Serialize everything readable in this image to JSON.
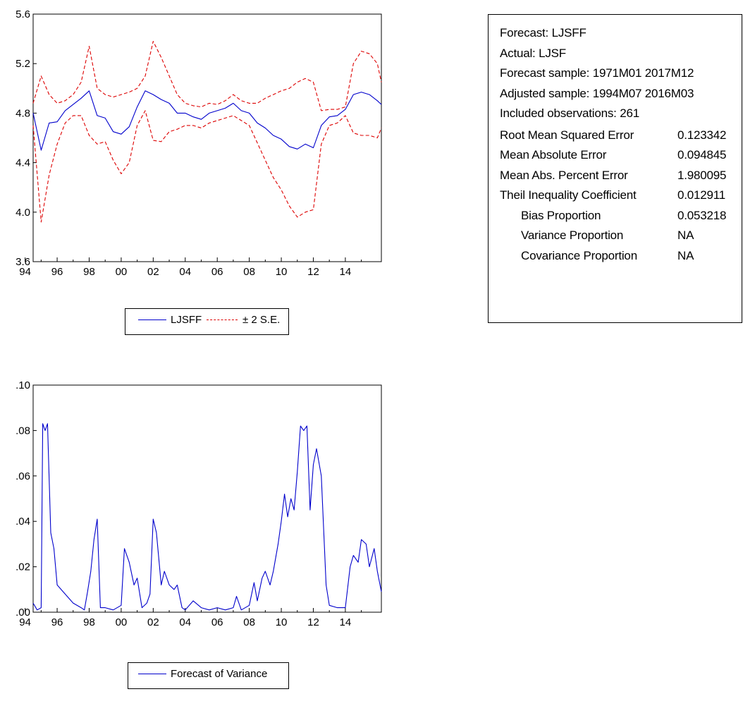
{
  "chart_data": [
    {
      "type": "line",
      "title": "",
      "xlabel": "",
      "ylabel": "",
      "x_ticks": [
        "94",
        "96",
        "98",
        "00",
        "02",
        "04",
        "06",
        "08",
        "10",
        "12",
        "14"
      ],
      "y_ticks": [
        "3.6",
        "4.0",
        "4.4",
        "4.8",
        "5.2",
        "5.6"
      ],
      "ylim": [
        3.6,
        5.6
      ],
      "xlim": [
        1994.5,
        2016.25
      ],
      "legend": [
        "LJSFF",
        "± 2 S.E."
      ],
      "legend_placement": "bottom-center",
      "colors": {
        "forecast": "#0000cc",
        "bands": "#dd0000"
      },
      "x": [
        1994.5,
        1995.0,
        1995.5,
        1996.0,
        1996.5,
        1997.0,
        1997.5,
        1998.0,
        1998.5,
        1999.0,
        1999.5,
        2000.0,
        2000.5,
        2001.0,
        2001.5,
        2002.0,
        2002.5,
        2003.0,
        2003.5,
        2004.0,
        2004.5,
        2005.0,
        2005.5,
        2006.0,
        2006.5,
        2007.0,
        2007.5,
        2008.0,
        2008.5,
        2009.0,
        2009.5,
        2010.0,
        2010.5,
        2011.0,
        2011.5,
        2012.0,
        2012.5,
        2013.0,
        2013.5,
        2014.0,
        2014.5,
        2015.0,
        2015.5,
        2016.0,
        2016.25
      ],
      "series": [
        {
          "name": "LJSFF",
          "style": "solid",
          "values": [
            4.8,
            4.5,
            4.72,
            4.73,
            4.82,
            4.87,
            4.92,
            4.98,
            4.78,
            4.76,
            4.65,
            4.63,
            4.69,
            4.85,
            4.98,
            4.95,
            4.91,
            4.88,
            4.8,
            4.8,
            4.77,
            4.75,
            4.8,
            4.82,
            4.84,
            4.88,
            4.82,
            4.8,
            4.72,
            4.68,
            4.62,
            4.59,
            4.53,
            4.51,
            4.55,
            4.52,
            4.7,
            4.77,
            4.78,
            4.83,
            4.95,
            4.97,
            4.95,
            4.9,
            4.87
          ]
        },
        {
          "name": "± 2 S.E.",
          "style": "dashed",
          "band": "upper",
          "values": [
            4.88,
            5.1,
            4.95,
            4.88,
            4.9,
            4.95,
            5.05,
            5.34,
            5.0,
            4.95,
            4.93,
            4.95,
            4.97,
            5.0,
            5.1,
            5.38,
            5.25,
            5.1,
            4.95,
            4.88,
            4.86,
            4.85,
            4.88,
            4.87,
            4.9,
            4.95,
            4.9,
            4.88,
            4.88,
            4.92,
            4.95,
            4.98,
            5.0,
            5.05,
            5.08,
            5.05,
            4.82,
            4.83,
            4.83,
            4.85,
            5.2,
            5.3,
            5.28,
            5.2,
            5.05
          ]
        },
        {
          "name": "± 2 S.E.",
          "style": "dashed",
          "band": "lower",
          "values": [
            4.7,
            3.92,
            4.3,
            4.55,
            4.72,
            4.78,
            4.78,
            4.62,
            4.55,
            4.57,
            4.42,
            4.31,
            4.4,
            4.7,
            4.82,
            4.58,
            4.57,
            4.65,
            4.67,
            4.7,
            4.7,
            4.68,
            4.72,
            4.74,
            4.76,
            4.78,
            4.74,
            4.7,
            4.56,
            4.42,
            4.28,
            4.18,
            4.05,
            3.96,
            4.0,
            4.02,
            4.55,
            4.7,
            4.72,
            4.78,
            4.64,
            4.62,
            4.62,
            4.6,
            4.68
          ]
        }
      ]
    },
    {
      "type": "line",
      "title": "",
      "xlabel": "",
      "ylabel": "",
      "x_ticks": [
        "94",
        "96",
        "98",
        "00",
        "02",
        "04",
        "06",
        "08",
        "10",
        "12",
        "14"
      ],
      "y_ticks": [
        ".00",
        ".02",
        ".04",
        ".06",
        ".08",
        ".10"
      ],
      "ylim": [
        0.0,
        0.1
      ],
      "xlim": [
        1994.5,
        2016.25
      ],
      "legend": [
        "Forecast of Variance"
      ],
      "legend_placement": "bottom-center",
      "colors": {
        "variance": "#0000cc"
      },
      "x": [
        1994.5,
        1994.75,
        1995.0,
        1995.1,
        1995.25,
        1995.4,
        1995.6,
        1995.8,
        1996.0,
        1996.5,
        1997.0,
        1997.5,
        1997.7,
        1997.9,
        1998.1,
        1998.3,
        1998.5,
        1998.7,
        1999.0,
        1999.5,
        2000.0,
        2000.2,
        2000.5,
        2000.8,
        2001.0,
        2001.3,
        2001.6,
        2001.8,
        2002.0,
        2002.2,
        2002.5,
        2002.7,
        2003.0,
        2003.3,
        2003.5,
        2003.8,
        2004.0,
        2004.5,
        2005.0,
        2005.5,
        2006.0,
        2006.5,
        2007.0,
        2007.2,
        2007.5,
        2008.0,
        2008.3,
        2008.5,
        2008.8,
        2009.0,
        2009.3,
        2009.5,
        2009.8,
        2010.0,
        2010.2,
        2010.4,
        2010.6,
        2010.8,
        2011.0,
        2011.2,
        2011.4,
        2011.6,
        2011.8,
        2012.0,
        2012.2,
        2012.5,
        2012.8,
        2013.0,
        2013.5,
        2014.0,
        2014.3,
        2014.5,
        2014.8,
        2015.0,
        2015.3,
        2015.5,
        2015.8,
        2016.0,
        2016.25
      ],
      "series": [
        {
          "name": "Forecast of Variance",
          "style": "solid",
          "values": [
            0.004,
            0.001,
            0.002,
            0.083,
            0.08,
            0.083,
            0.035,
            0.028,
            0.012,
            0.008,
            0.004,
            0.002,
            0.001,
            0.009,
            0.018,
            0.032,
            0.041,
            0.002,
            0.002,
            0.001,
            0.003,
            0.028,
            0.022,
            0.012,
            0.015,
            0.002,
            0.004,
            0.008,
            0.041,
            0.035,
            0.012,
            0.018,
            0.012,
            0.01,
            0.012,
            0.002,
            0.001,
            0.005,
            0.002,
            0.001,
            0.002,
            0.001,
            0.002,
            0.007,
            0.001,
            0.003,
            0.013,
            0.005,
            0.015,
            0.018,
            0.012,
            0.018,
            0.03,
            0.04,
            0.052,
            0.042,
            0.05,
            0.045,
            0.062,
            0.082,
            0.08,
            0.082,
            0.045,
            0.065,
            0.072,
            0.06,
            0.012,
            0.003,
            0.002,
            0.002,
            0.02,
            0.025,
            0.022,
            0.032,
            0.03,
            0.02,
            0.028,
            0.018,
            0.009
          ]
        }
      ]
    }
  ],
  "stats": {
    "header_lines": [
      "Forecast: LJSFF",
      "Actual: LJSF",
      "Forecast sample: 1971M01 2017M12",
      "Adjusted sample: 1994M07 2016M03",
      "Included observations: 261"
    ],
    "rows": [
      {
        "label": "Root Mean Squared Error",
        "value": "0.123342",
        "indent": false
      },
      {
        "label": "Mean Absolute Error",
        "value": "0.094845",
        "indent": false
      },
      {
        "label": "Mean Abs. Percent Error",
        "value": "1.980095",
        "indent": false
      },
      {
        "label": "Theil Inequality Coefficient",
        "value": "0.012911",
        "indent": false
      },
      {
        "label": "Bias Proportion",
        "value": "0.053218",
        "indent": true
      },
      {
        "label": "Variance Proportion",
        "value": "NA",
        "indent": true
      },
      {
        "label": "Covariance Proportion",
        "value": "NA",
        "indent": true
      }
    ]
  }
}
